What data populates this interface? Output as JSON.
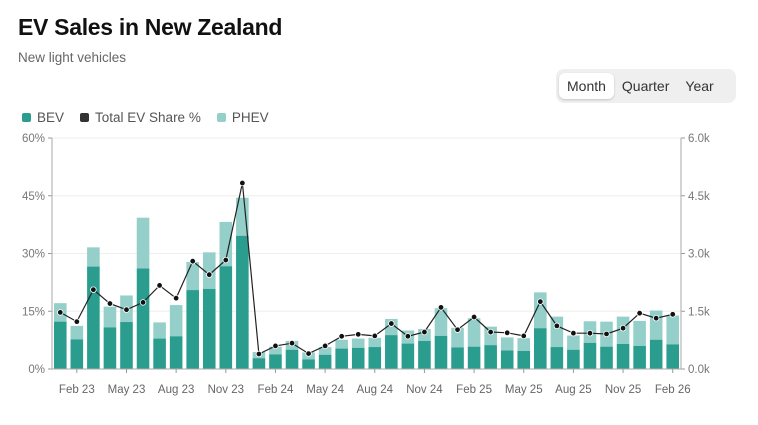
{
  "header": {
    "title": "EV Sales in New Zealand",
    "subtitle": "New light vehicles"
  },
  "period_toggle": {
    "options": [
      "Month",
      "Quarter",
      "Year"
    ],
    "selected": "Month"
  },
  "colors": {
    "bev": "#2a9d8f",
    "phev": "#94cfc9",
    "share": "#111111",
    "grid": "#eeeeee",
    "axis": "#888888"
  },
  "chart_data": {
    "type": "bar",
    "stacked": true,
    "legend": [
      {
        "name": "BEV",
        "color": "#2a9d8f",
        "kind": "bar"
      },
      {
        "name": "Total EV Share %",
        "color": "#333333",
        "kind": "line"
      },
      {
        "name": "PHEV",
        "color": "#94cfc9",
        "kind": "bar"
      }
    ],
    "x_tick_labels": [
      "Feb 23",
      "May 23",
      "Aug 23",
      "Nov 23",
      "Feb 24",
      "May 24",
      "Aug 24",
      "Nov 24",
      "Feb 25",
      "May 25",
      "Aug 25",
      "Nov 25",
      "Feb 26"
    ],
    "x_tick_every": 3,
    "months": [
      "Jan 23",
      "Feb 23",
      "Mar 23",
      "Apr 23",
      "May 23",
      "Jun 23",
      "Jul 23",
      "Aug 23",
      "Sep 23",
      "Oct 23",
      "Nov 23",
      "Dec 23",
      "Jan 24",
      "Feb 24",
      "Mar 24",
      "Apr 24",
      "May 24",
      "Jun 24",
      "Jul 24",
      "Aug 24",
      "Sep 24",
      "Oct 24",
      "Nov 24",
      "Dec 24",
      "Jan 25",
      "Feb 25",
      "Mar 25",
      "Apr 25",
      "May 25",
      "Jun 25",
      "Jul 25",
      "Aug 25",
      "Sep 25",
      "Oct 25",
      "Nov 25",
      "Dec 25",
      "Jan 26",
      "Feb 26"
    ],
    "bev": [
      1230,
      770,
      2660,
      1080,
      1220,
      2610,
      790,
      850,
      2050,
      2080,
      2670,
      3460,
      280,
      380,
      500,
      250,
      370,
      530,
      550,
      570,
      880,
      660,
      730,
      860,
      560,
      580,
      620,
      480,
      470,
      1060,
      570,
      500,
      680,
      580,
      650,
      600,
      760,
      640
    ],
    "phev": [
      480,
      350,
      500,
      540,
      690,
      1320,
      420,
      810,
      730,
      950,
      1150,
      990,
      160,
      200,
      230,
      180,
      200,
      230,
      240,
      240,
      420,
      340,
      310,
      720,
      510,
      740,
      480,
      340,
      330,
      930,
      790,
      370,
      560,
      650,
      710,
      650,
      760,
      750
    ],
    "share": [
      14.7,
      12.3,
      20.6,
      17.0,
      15.4,
      17.3,
      21.7,
      18.4,
      28.0,
      24.5,
      28.3,
      48.3,
      3.9,
      6.0,
      6.7,
      4.0,
      6.0,
      8.5,
      9.0,
      8.6,
      11.8,
      8.5,
      9.6,
      16.0,
      10.2,
      13.5,
      9.6,
      9.4,
      8.6,
      17.5,
      11.2,
      9.3,
      9.3,
      9.1,
      10.6,
      14.5,
      13.2,
      14.2
    ],
    "y_left": {
      "min": 0,
      "max": 60,
      "unit": "%",
      "ticks": [
        "0%",
        "15%",
        "30%",
        "45%",
        "60%"
      ],
      "tick_values": [
        0,
        15,
        30,
        45,
        60
      ]
    },
    "y_right": {
      "min": 0,
      "max": 6000,
      "ticks": [
        "0.0k",
        "1.5k",
        "3.0k",
        "4.5k",
        "6.0k"
      ],
      "tick_values": [
        0,
        1500,
        3000,
        4500,
        6000
      ]
    },
    "grid": true,
    "legend_position": "top-left"
  }
}
